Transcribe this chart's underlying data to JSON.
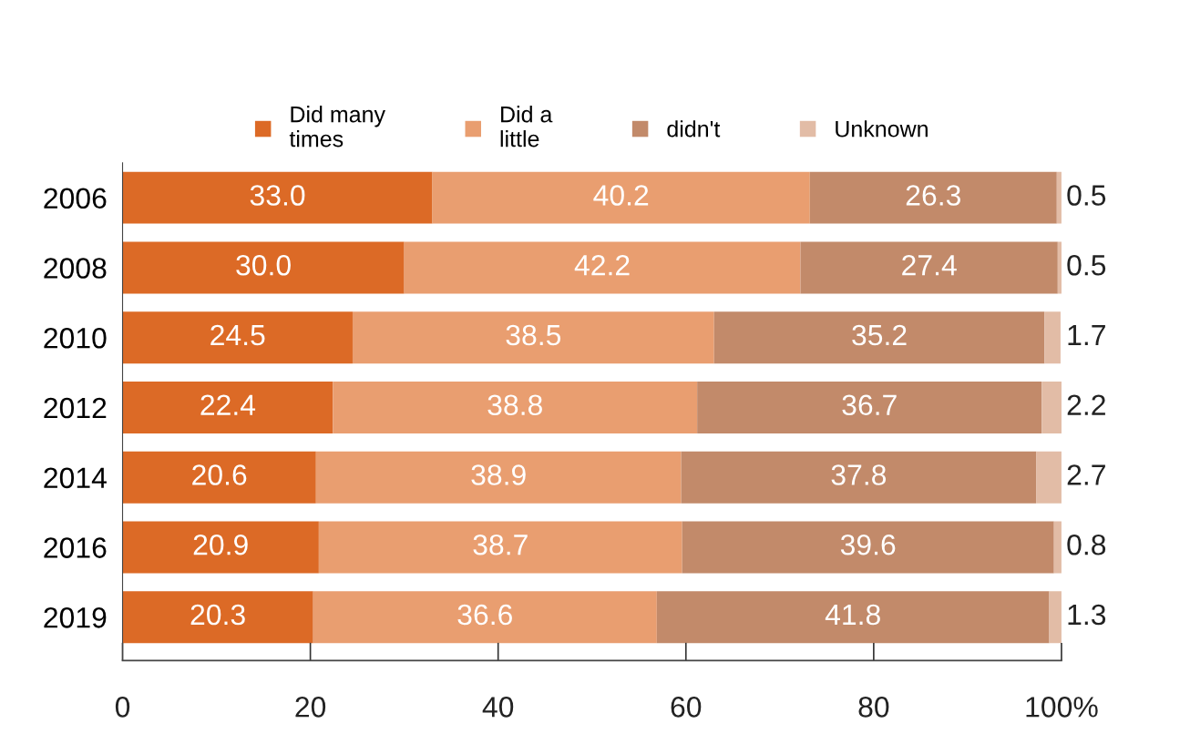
{
  "chart_data": {
    "type": "bar",
    "orientation": "horizontal",
    "stacked": true,
    "categories": [
      "2006",
      "2008",
      "2010",
      "2012",
      "2014",
      "2016",
      "2019"
    ],
    "series": [
      {
        "name": "Did many\ntimes",
        "color": "#dc6a26",
        "values": [
          33.0,
          30.0,
          24.5,
          22.4,
          20.6,
          20.9,
          20.3
        ],
        "value_labels": [
          "33.0",
          "30.0",
          "24.5",
          "22.4",
          "20.6",
          "20.9",
          "20.3"
        ]
      },
      {
        "name": "Did a\nlittle",
        "color": "#e99e70",
        "values": [
          40.2,
          42.2,
          38.5,
          38.8,
          38.9,
          38.7,
          36.6
        ],
        "value_labels": [
          "40.2",
          "42.2",
          "38.5",
          "38.8",
          "38.9",
          "38.7",
          "36.6"
        ]
      },
      {
        "name": "didn't",
        "color": "#c28a6a",
        "values": [
          26.3,
          27.4,
          35.2,
          36.7,
          37.8,
          39.6,
          41.8
        ],
        "value_labels": [
          "26.3",
          "27.4",
          "35.2",
          "36.7",
          "37.8",
          "39.6",
          "41.8"
        ]
      },
      {
        "name": "Unknown",
        "color": "#e2bca6",
        "values": [
          0.5,
          0.5,
          1.7,
          2.2,
          2.7,
          0.8,
          1.3
        ],
        "value_labels": [
          "0.5",
          "0.5",
          "1.7",
          "2.2",
          "2.7",
          "0.8",
          "1.3"
        ]
      }
    ],
    "xlim": [
      0,
      100
    ],
    "xticks": [
      0,
      20,
      40,
      60,
      80,
      {
        "value": 100,
        "label": "100%"
      }
    ],
    "legend": "top",
    "grid": false
  }
}
